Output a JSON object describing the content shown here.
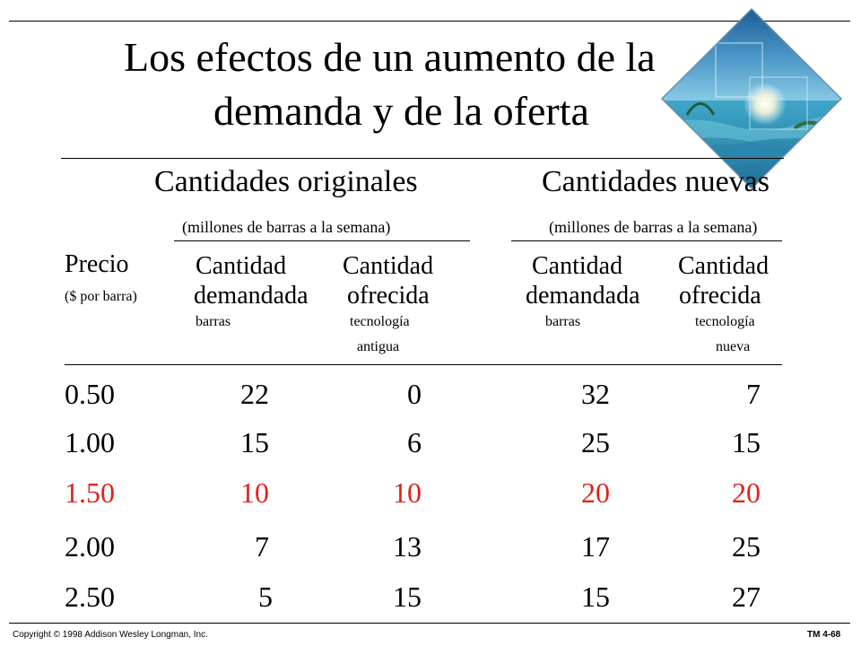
{
  "title": {
    "line1": "Los efectos de un aumento de la",
    "line2": "demanda y de la oferta"
  },
  "table": {
    "original_header": "Cantidades originales",
    "new_header": "Cantidades nuevas",
    "original_unit": "(millones de barras a la semana)",
    "new_unit": "(millones de barras a la semana)",
    "price_label": "Precio",
    "price_unit": "($ por barra)",
    "columns": [
      {
        "line1": "Cantidad",
        "line2": "demandada",
        "sub1": "barras",
        "sub2": ""
      },
      {
        "line1": "Cantidad",
        "line2": "ofrecida",
        "sub1": "tecnología",
        "sub2": "antigua"
      },
      {
        "line1": "Cantidad",
        "line2": "demandada",
        "sub1": "barras",
        "sub2": ""
      },
      {
        "line1": "Cantidad",
        "line2": "ofrecida",
        "sub1": "tecnología",
        "sub2": "nueva"
      }
    ],
    "highlight_color": "#e0231a",
    "rows": [
      {
        "price": "0.50",
        "values": [
          "22",
          "0",
          "32",
          "7"
        ],
        "highlight": false
      },
      {
        "price": "1.00",
        "values": [
          "15",
          "6",
          "25",
          "15"
        ],
        "highlight": false
      },
      {
        "price": "1.50",
        "values": [
          "10",
          "10",
          "20",
          "20"
        ],
        "highlight": true
      },
      {
        "price": "2.00",
        "values": [
          "7",
          "13",
          "17",
          "25"
        ],
        "highlight": false
      },
      {
        "price": "2.50",
        "values": [
          "5",
          "15",
          "15",
          "27"
        ],
        "highlight": false
      }
    ]
  },
  "footer": {
    "copyright": "Copyright © 1998 Addison Wesley Longman, Inc.",
    "slide_id": "TM 4-68"
  }
}
